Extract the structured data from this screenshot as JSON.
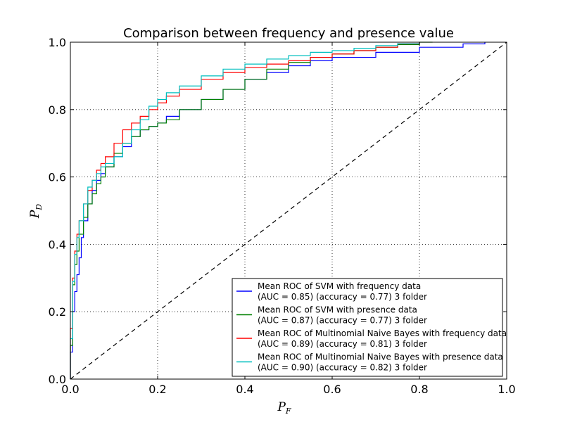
{
  "chart_data": {
    "type": "line",
    "title": "Comparison between frequency and presence value",
    "xlabel": {
      "main": "P",
      "sub": "F"
    },
    "ylabel": {
      "main": "P",
      "sub": "D"
    },
    "xlim": [
      0,
      1
    ],
    "ylim": [
      0,
      1
    ],
    "xticks": [
      "0.0",
      "0.2",
      "0.4",
      "0.6",
      "0.8",
      "1.0"
    ],
    "yticks": [
      "0.0",
      "0.2",
      "0.4",
      "0.6",
      "0.8",
      "1.0"
    ],
    "grid": true,
    "legend_position": "lower-right",
    "reference_line": {
      "x": [
        0,
        1
      ],
      "y": [
        0,
        1
      ],
      "style": "dashed",
      "color": "#000000"
    },
    "series": [
      {
        "name": "Mean ROC of SVM with frequency data",
        "note": "(AUC = 0.85) (accuracy = 0.77) 3 folder",
        "color": "#0000ff",
        "x": [
          0.0,
          0.0,
          0.005,
          0.01,
          0.015,
          0.02,
          0.025,
          0.03,
          0.04,
          0.05,
          0.06,
          0.07,
          0.08,
          0.1,
          0.12,
          0.14,
          0.16,
          0.18,
          0.2,
          0.22,
          0.25,
          0.3,
          0.35,
          0.4,
          0.45,
          0.5,
          0.55,
          0.6,
          0.7,
          0.8,
          0.9,
          0.95
        ],
        "y": [
          0.0,
          0.08,
          0.2,
          0.26,
          0.31,
          0.36,
          0.42,
          0.47,
          0.52,
          0.56,
          0.59,
          0.61,
          0.63,
          0.66,
          0.69,
          0.72,
          0.74,
          0.75,
          0.76,
          0.78,
          0.8,
          0.83,
          0.86,
          0.89,
          0.91,
          0.93,
          0.945,
          0.955,
          0.97,
          0.985,
          0.995,
          1.0
        ]
      },
      {
        "name": "Mean ROC of SVM with presence data",
        "note": "(AUC = 0.87) (accuracy = 0.77) 3 folder",
        "color": "#008000",
        "x": [
          0.0,
          0.0,
          0.005,
          0.01,
          0.015,
          0.02,
          0.03,
          0.04,
          0.05,
          0.06,
          0.07,
          0.08,
          0.1,
          0.12,
          0.14,
          0.16,
          0.18,
          0.2,
          0.22,
          0.25,
          0.3,
          0.35,
          0.4,
          0.45,
          0.5,
          0.55,
          0.6,
          0.65,
          0.7,
          0.75,
          0.8,
          0.83
        ],
        "y": [
          0.0,
          0.1,
          0.28,
          0.34,
          0.38,
          0.43,
          0.48,
          0.52,
          0.55,
          0.58,
          0.6,
          0.63,
          0.67,
          0.7,
          0.72,
          0.74,
          0.75,
          0.76,
          0.77,
          0.8,
          0.83,
          0.86,
          0.89,
          0.92,
          0.94,
          0.955,
          0.965,
          0.975,
          0.985,
          0.993,
          1.0,
          1.0
        ]
      },
      {
        "name": "Mean ROC of Multinomial Naive Bayes with frequency data",
        "note": "(AUC = 0.89) (accuracy = 0.81) 3 folder",
        "color": "#ff0000",
        "x": [
          0.0,
          0.0,
          0.005,
          0.01,
          0.015,
          0.02,
          0.03,
          0.04,
          0.05,
          0.06,
          0.07,
          0.08,
          0.1,
          0.12,
          0.14,
          0.16,
          0.18,
          0.2,
          0.22,
          0.25,
          0.3,
          0.35,
          0.4,
          0.45,
          0.5,
          0.55,
          0.6,
          0.65,
          0.7,
          0.75,
          0.8
        ],
        "y": [
          0.0,
          0.15,
          0.3,
          0.38,
          0.43,
          0.47,
          0.52,
          0.56,
          0.59,
          0.62,
          0.64,
          0.66,
          0.7,
          0.74,
          0.76,
          0.78,
          0.8,
          0.82,
          0.84,
          0.86,
          0.89,
          0.91,
          0.925,
          0.935,
          0.945,
          0.955,
          0.965,
          0.975,
          0.985,
          0.995,
          1.0
        ]
      },
      {
        "name": "Mean ROC of Multinomial Naive Bayes with presence data",
        "note": "(AUC = 0.90) (accuracy = 0.82) 3 folder",
        "color": "#00bfbf",
        "x": [
          0.0,
          0.0,
          0.005,
          0.01,
          0.015,
          0.02,
          0.03,
          0.04,
          0.05,
          0.06,
          0.07,
          0.08,
          0.1,
          0.12,
          0.14,
          0.16,
          0.18,
          0.2,
          0.22,
          0.25,
          0.3,
          0.35,
          0.4,
          0.45,
          0.5,
          0.55,
          0.6,
          0.65,
          0.7,
          0.75,
          0.8
        ],
        "y": [
          0.0,
          0.12,
          0.29,
          0.37,
          0.42,
          0.47,
          0.52,
          0.57,
          0.59,
          0.61,
          0.63,
          0.64,
          0.66,
          0.7,
          0.74,
          0.77,
          0.81,
          0.83,
          0.85,
          0.87,
          0.9,
          0.92,
          0.935,
          0.95,
          0.96,
          0.97,
          0.975,
          0.982,
          0.99,
          0.996,
          1.0
        ]
      }
    ]
  }
}
